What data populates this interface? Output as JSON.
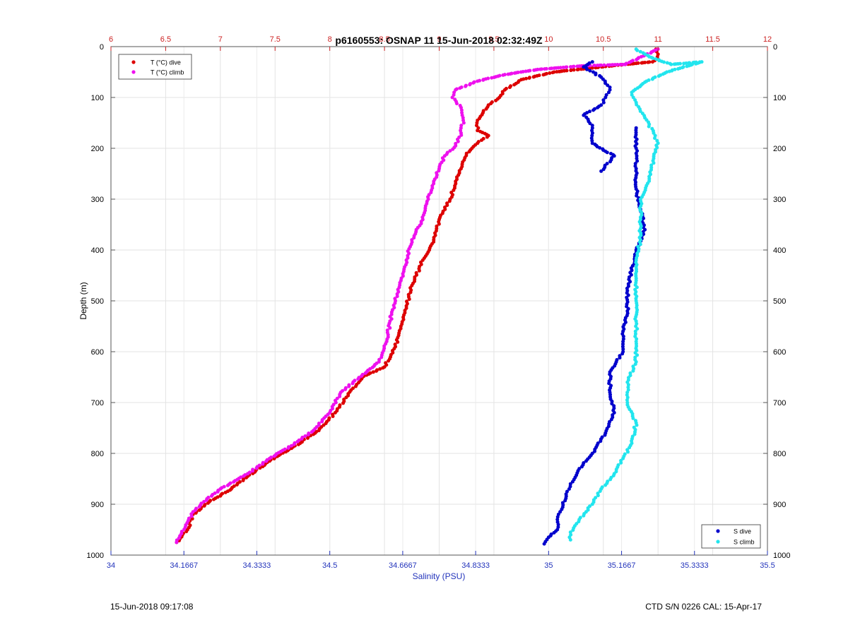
{
  "chart_data": {
    "type": "scatter",
    "title": "p6160553: OSNAP 11 15-Jun-2018 02:32:49Z",
    "ylabel": "Depth (m)",
    "xlabel_bottom": "Salinity (PSU)",
    "y_axis": {
      "range": [
        0,
        1000
      ],
      "reversed": true,
      "ticks": [
        "0",
        "100",
        "200",
        "300",
        "400",
        "500",
        "600",
        "700",
        "800",
        "900",
        "1000"
      ]
    },
    "x_top": {
      "range": [
        6,
        12
      ],
      "color": "#cc2222",
      "ticks": [
        "6",
        "6.5",
        "7",
        "7.5",
        "8",
        "8.5",
        "9",
        "9.5",
        "10",
        "10.5",
        "11",
        "11.5",
        "12"
      ]
    },
    "x_bottom": {
      "range": [
        34,
        35.5
      ],
      "color": "#2233bb",
      "ticks": [
        "34",
        "34.1667",
        "34.3333",
        "34.5",
        "34.6667",
        "34.8333",
        "35",
        "35.1667",
        "35.3333",
        "35.5"
      ]
    },
    "grid": true,
    "legend_top": {
      "placement": "top-left",
      "entries": [
        {
          "label": "T (°C) dive",
          "color": "#dd0000"
        },
        {
          "label": "T (°C) climb",
          "color": "#ee11ee"
        }
      ]
    },
    "legend_bottom": {
      "placement": "bottom-right",
      "entries": [
        {
          "label": "S dive",
          "color": "#0000cc"
        },
        {
          "label": "S climb",
          "color": "#22e5ee"
        }
      ]
    },
    "series": [
      {
        "name": "T (°C) dive",
        "axis": "top",
        "color": "#dd0000",
        "points": [
          [
            10.98,
            5
          ],
          [
            11.0,
            15
          ],
          [
            11.0,
            25
          ],
          [
            10.95,
            30
          ],
          [
            10.7,
            35
          ],
          [
            10.4,
            42
          ],
          [
            10.05,
            50
          ],
          [
            9.75,
            65
          ],
          [
            9.6,
            85
          ],
          [
            9.55,
            100
          ],
          [
            9.45,
            115
          ],
          [
            9.4,
            130
          ],
          [
            9.35,
            145
          ],
          [
            9.35,
            165
          ],
          [
            9.45,
            175
          ],
          [
            9.35,
            190
          ],
          [
            9.25,
            210
          ],
          [
            9.2,
            240
          ],
          [
            9.15,
            265
          ],
          [
            9.1,
            300
          ],
          [
            9.0,
            340
          ],
          [
            8.95,
            380
          ],
          [
            8.85,
            420
          ],
          [
            8.75,
            470
          ],
          [
            8.7,
            510
          ],
          [
            8.65,
            550
          ],
          [
            8.6,
            590
          ],
          [
            8.5,
            630
          ],
          [
            8.3,
            650
          ],
          [
            8.15,
            690
          ],
          [
            8.05,
            720
          ],
          [
            7.9,
            755
          ],
          [
            7.65,
            790
          ],
          [
            7.45,
            815
          ],
          [
            7.25,
            845
          ],
          [
            7.1,
            870
          ],
          [
            6.9,
            895
          ],
          [
            6.75,
            920
          ],
          [
            6.7,
            950
          ],
          [
            6.6,
            975
          ]
        ]
      },
      {
        "name": "T (°C) climb",
        "axis": "top",
        "color": "#ee11ee",
        "points": [
          [
            11.0,
            5
          ],
          [
            10.7,
            35
          ],
          [
            10.3,
            38
          ],
          [
            9.9,
            45
          ],
          [
            9.6,
            55
          ],
          [
            9.35,
            68
          ],
          [
            9.15,
            85
          ],
          [
            9.12,
            100
          ],
          [
            9.2,
            120
          ],
          [
            9.22,
            145
          ],
          [
            9.2,
            170
          ],
          [
            9.15,
            195
          ],
          [
            9.05,
            215
          ],
          [
            9.0,
            240
          ],
          [
            8.95,
            265
          ],
          [
            8.9,
            300
          ],
          [
            8.85,
            340
          ],
          [
            8.75,
            380
          ],
          [
            8.7,
            420
          ],
          [
            8.65,
            460
          ],
          [
            8.6,
            500
          ],
          [
            8.55,
            540
          ],
          [
            8.52,
            580
          ],
          [
            8.45,
            620
          ],
          [
            8.3,
            645
          ],
          [
            8.1,
            680
          ],
          [
            8.0,
            720
          ],
          [
            7.85,
            755
          ],
          [
            7.65,
            785
          ],
          [
            7.45,
            810
          ],
          [
            7.25,
            840
          ],
          [
            7.0,
            870
          ],
          [
            6.85,
            895
          ],
          [
            6.75,
            915
          ],
          [
            6.68,
            945
          ],
          [
            6.6,
            975
          ]
        ]
      },
      {
        "name": "S dive",
        "axis": "bottom",
        "color": "#0000cc",
        "points": [
          [
            35.1,
            30
          ],
          [
            35.08,
            40
          ],
          [
            35.12,
            60
          ],
          [
            35.14,
            80
          ],
          [
            35.13,
            100
          ],
          [
            35.12,
            115
          ],
          [
            35.08,
            135
          ],
          [
            35.1,
            155
          ],
          [
            35.1,
            190
          ],
          [
            35.15,
            215
          ],
          [
            35.12,
            245
          ],
          [
            35.2,
            160
          ],
          [
            35.2,
            200
          ],
          [
            35.2,
            240
          ],
          [
            35.2,
            280
          ],
          [
            35.21,
            320
          ],
          [
            35.22,
            360
          ],
          [
            35.2,
            400
          ],
          [
            35.19,
            440
          ],
          [
            35.18,
            480
          ],
          [
            35.18,
            520
          ],
          [
            35.17,
            560
          ],
          [
            35.17,
            600
          ],
          [
            35.14,
            640
          ],
          [
            35.14,
            680
          ],
          [
            35.15,
            720
          ],
          [
            35.13,
            760
          ],
          [
            35.1,
            800
          ],
          [
            35.07,
            830
          ],
          [
            35.05,
            860
          ],
          [
            35.04,
            880
          ],
          [
            35.03,
            910
          ],
          [
            35.02,
            930
          ],
          [
            35.02,
            950
          ],
          [
            35.0,
            965
          ],
          [
            34.99,
            978
          ]
        ]
      },
      {
        "name": "S climb",
        "axis": "bottom",
        "color": "#22e5ee",
        "points": [
          [
            35.2,
            5
          ],
          [
            35.23,
            20
          ],
          [
            35.28,
            35
          ],
          [
            35.35,
            30
          ],
          [
            35.27,
            50
          ],
          [
            35.22,
            70
          ],
          [
            35.19,
            90
          ],
          [
            35.2,
            110
          ],
          [
            35.22,
            140
          ],
          [
            35.24,
            170
          ],
          [
            35.25,
            190
          ],
          [
            35.24,
            220
          ],
          [
            35.23,
            260
          ],
          [
            35.21,
            300
          ],
          [
            35.21,
            340
          ],
          [
            35.21,
            380
          ],
          [
            35.2,
            420
          ],
          [
            35.2,
            460
          ],
          [
            35.2,
            500
          ],
          [
            35.2,
            540
          ],
          [
            35.2,
            580
          ],
          [
            35.2,
            620
          ],
          [
            35.18,
            660
          ],
          [
            35.18,
            700
          ],
          [
            35.2,
            740
          ],
          [
            35.19,
            780
          ],
          [
            35.17,
            810
          ],
          [
            35.15,
            840
          ],
          [
            35.12,
            870
          ],
          [
            35.1,
            900
          ],
          [
            35.07,
            930
          ],
          [
            35.05,
            955
          ],
          [
            35.05,
            970
          ]
        ]
      }
    ]
  },
  "footer": {
    "left": "15-Jun-2018 09:17:08",
    "right": "CTD S/N 0226  CAL: 15-Apr-17"
  }
}
